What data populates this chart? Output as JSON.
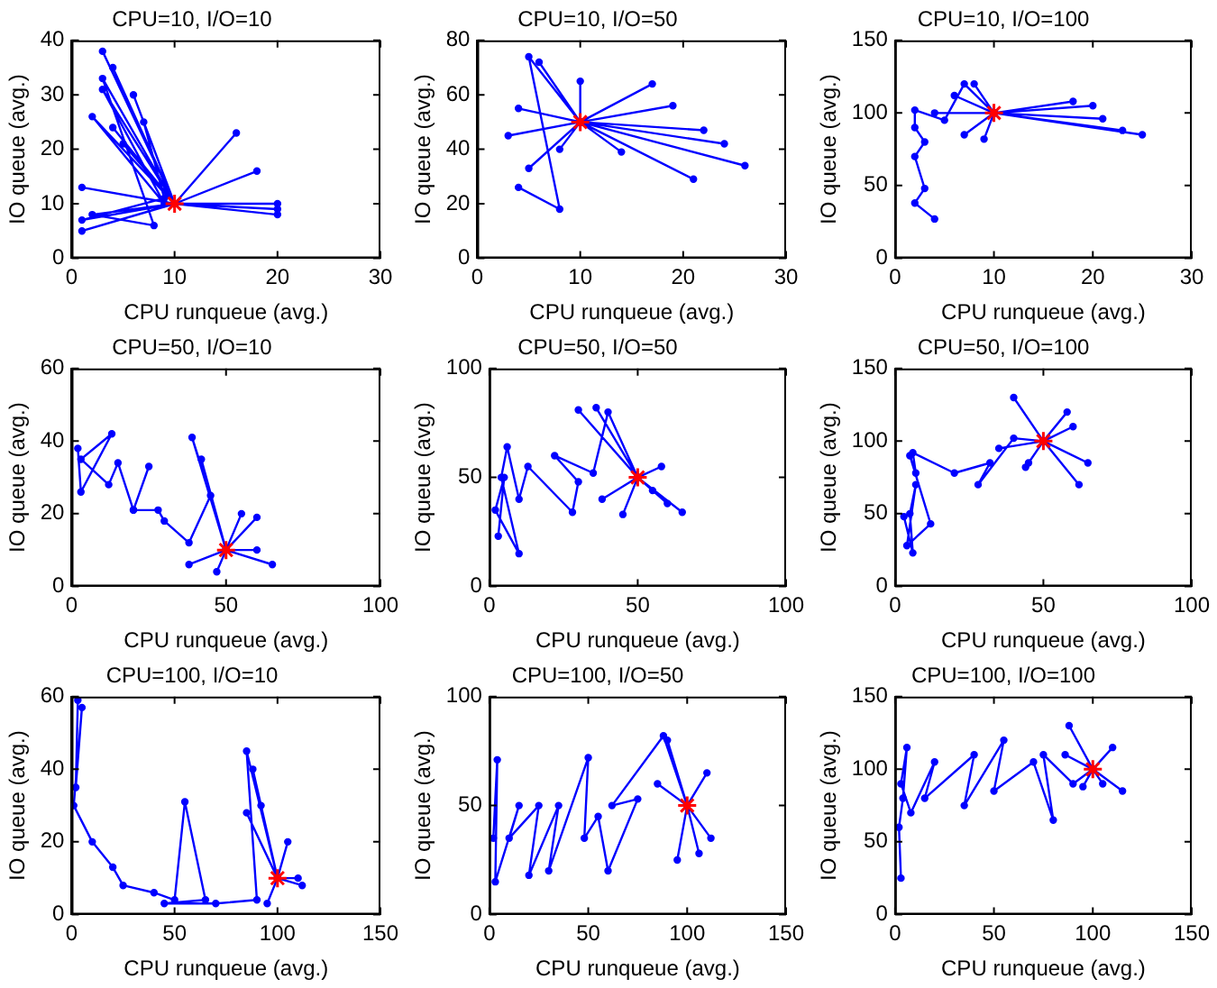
{
  "chart_data": [
    {
      "type": "line",
      "title": "CPU=10, I/O=10",
      "xlabel": "CPU runqueue (avg.)",
      "ylabel": "IO queue (avg.)",
      "xlim": [
        0,
        30
      ],
      "xticks": [
        0,
        10,
        20,
        30
      ],
      "ylim": [
        0,
        40
      ],
      "yticks": [
        0,
        10,
        20,
        30,
        40
      ],
      "grid": false,
      "legend": false,
      "series": [
        {
          "type": "line",
          "marker": "circle",
          "line_style": "solid",
          "color": "#0000ff",
          "x": [
            3,
            10,
            4,
            10,
            3,
            9,
            2,
            10,
            5,
            10,
            1,
            10,
            20,
            10,
            16,
            10,
            18,
            10,
            20,
            10,
            1,
            10,
            2,
            8,
            3,
            10,
            6,
            10,
            7,
            9,
            1,
            10,
            4,
            10,
            20,
            10
          ],
          "values": [
            38,
            10,
            35,
            10,
            31,
            10,
            26,
            10,
            21,
            10,
            5,
            10,
            9,
            10,
            23,
            10,
            16,
            10,
            8,
            10,
            13,
            10,
            8,
            6,
            33,
            10,
            30,
            10,
            25,
            11,
            7,
            10,
            24,
            10,
            10,
            10
          ]
        },
        {
          "type": "scatter",
          "marker": "cross",
          "color": "#ff0000",
          "x": [
            10
          ],
          "values": [
            10
          ]
        }
      ]
    },
    {
      "type": "line",
      "title": "CPU=10, I/O=50",
      "xlabel": "CPU runqueue (avg.)",
      "ylabel": "IO queue (avg.)",
      "xlim": [
        0,
        30
      ],
      "xticks": [
        0,
        10,
        20,
        30
      ],
      "ylim": [
        0,
        80
      ],
      "yticks": [
        0,
        20,
        40,
        60,
        80
      ],
      "grid": false,
      "legend": false,
      "series": [
        {
          "type": "line",
          "marker": "circle",
          "line_style": "solid",
          "color": "#0000ff",
          "x": [
            4,
            8,
            5,
            10,
            6,
            10,
            26,
            10,
            22,
            10,
            17,
            10,
            10,
            10,
            4,
            10,
            21,
            10,
            14,
            10,
            3,
            10,
            5,
            10,
            19,
            10,
            24,
            10,
            8,
            10
          ],
          "values": [
            26,
            18,
            74,
            50,
            72,
            50,
            34,
            50,
            47,
            50,
            64,
            50,
            65,
            50,
            55,
            50,
            29,
            50,
            39,
            50,
            45,
            50,
            33,
            50,
            56,
            50,
            42,
            50,
            40,
            50
          ]
        },
        {
          "type": "scatter",
          "marker": "cross",
          "color": "#ff0000",
          "x": [
            10
          ],
          "values": [
            50
          ]
        }
      ]
    },
    {
      "type": "line",
      "title": "CPU=10, I/O=100",
      "xlabel": "CPU runqueue (avg.)",
      "ylabel": "IO queue (avg.)",
      "xlim": [
        0,
        30
      ],
      "xticks": [
        0,
        10,
        20,
        30
      ],
      "ylim": [
        0,
        150
      ],
      "yticks": [
        0,
        50,
        100,
        150
      ],
      "grid": false,
      "legend": false,
      "series": [
        {
          "type": "line",
          "marker": "circle",
          "line_style": "solid",
          "color": "#0000ff",
          "x": [
            4,
            2,
            3,
            2,
            3,
            2,
            2,
            5,
            7,
            10,
            25,
            10,
            23,
            10,
            20,
            10,
            8,
            10,
            9,
            10,
            6,
            10,
            18,
            10,
            4,
            10,
            7,
            10,
            21,
            10
          ],
          "values": [
            27,
            38,
            48,
            70,
            80,
            90,
            102,
            95,
            120,
            100,
            85,
            100,
            88,
            100,
            105,
            100,
            120,
            100,
            82,
            100,
            112,
            100,
            108,
            100,
            100,
            100,
            85,
            100,
            96,
            100
          ]
        },
        {
          "type": "scatter",
          "marker": "cross",
          "color": "#ff0000",
          "x": [
            10
          ],
          "values": [
            100
          ]
        }
      ]
    },
    {
      "type": "line",
      "title": "CPU=50, I/O=10",
      "xlabel": "CPU runqueue (avg.)",
      "ylabel": "IO queue (avg.)",
      "xlim": [
        0,
        100
      ],
      "xticks": [
        0,
        50,
        100
      ],
      "ylim": [
        0,
        60
      ],
      "yticks": [
        0,
        20,
        40,
        60
      ],
      "grid": false,
      "legend": false,
      "series": [
        {
          "type": "line",
          "marker": "circle",
          "line_style": "solid",
          "color": "#0000ff",
          "x": [
            2,
            3,
            13,
            3,
            12,
            15,
            20,
            25,
            20,
            28,
            30,
            38,
            45,
            39,
            50,
            65,
            50,
            42,
            50,
            60,
            50,
            38,
            50,
            55,
            50,
            47,
            50,
            60,
            50
          ],
          "values": [
            38,
            26,
            42,
            35,
            28,
            34,
            21,
            33,
            21,
            21,
            18,
            12,
            25,
            41,
            10,
            6,
            10,
            35,
            10,
            19,
            10,
            6,
            10,
            20,
            10,
            4,
            10,
            10,
            10
          ]
        },
        {
          "type": "scatter",
          "marker": "cross",
          "color": "#ff0000",
          "x": [
            50
          ],
          "values": [
            10
          ]
        }
      ]
    },
    {
      "type": "line",
      "title": "CPU=50, I/O=50",
      "xlabel": "CPU runqueue (avg.)",
      "ylabel": "IO queue (avg.)",
      "xlim": [
        0,
        100
      ],
      "xticks": [
        0,
        50,
        100
      ],
      "ylim": [
        0,
        100
      ],
      "yticks": [
        0,
        50,
        100
      ],
      "grid": false,
      "legend": false,
      "series": [
        {
          "type": "line",
          "marker": "circle",
          "line_style": "solid",
          "color": "#0000ff",
          "x": [
            3,
            5,
            2,
            10,
            4,
            6,
            10,
            13,
            28,
            30,
            22,
            35,
            40,
            50,
            36,
            50,
            65,
            50,
            60,
            50,
            38,
            50,
            45,
            50,
            58,
            50,
            30,
            50,
            55,
            50
          ],
          "values": [
            23,
            50,
            35,
            15,
            50,
            64,
            40,
            55,
            34,
            48,
            60,
            52,
            80,
            50,
            82,
            50,
            34,
            50,
            38,
            50,
            40,
            50,
            33,
            50,
            55,
            50,
            81,
            50,
            44,
            50
          ]
        },
        {
          "type": "scatter",
          "marker": "cross",
          "color": "#ff0000",
          "x": [
            50
          ],
          "values": [
            50
          ]
        }
      ]
    },
    {
      "type": "line",
      "title": "CPU=50, I/O=100",
      "xlabel": "CPU runqueue (avg.)",
      "ylabel": "IO queue (avg.)",
      "xlim": [
        0,
        100
      ],
      "xticks": [
        0,
        50,
        100
      ],
      "ylim": [
        0,
        150
      ],
      "yticks": [
        0,
        50,
        100,
        150
      ],
      "grid": false,
      "legend": false,
      "series": [
        {
          "type": "line",
          "marker": "circle",
          "line_style": "solid",
          "color": "#0000ff",
          "x": [
            3,
            6,
            5,
            7,
            4,
            12,
            5,
            7,
            6,
            20,
            32,
            28,
            40,
            50,
            40,
            50,
            65,
            50,
            62,
            50,
            44,
            50,
            58,
            50,
            35,
            50,
            60,
            50,
            45,
            50
          ],
          "values": [
            48,
            23,
            50,
            70,
            28,
            43,
            90,
            78,
            92,
            78,
            85,
            70,
            102,
            100,
            130,
            100,
            85,
            100,
            70,
            100,
            82,
            100,
            120,
            100,
            95,
            100,
            110,
            100,
            85,
            100
          ]
        },
        {
          "type": "scatter",
          "marker": "cross",
          "color": "#ff0000",
          "x": [
            50
          ],
          "values": [
            100
          ]
        }
      ]
    },
    {
      "type": "line",
      "title": "CPU=100, I/O=10",
      "xlabel": "CPU runqueue (avg.)",
      "ylabel": "IO queue (avg.)",
      "xlim": [
        0,
        150
      ],
      "xticks": [
        0,
        50,
        100,
        150
      ],
      "ylim": [
        0,
        60
      ],
      "yticks": [
        0,
        20,
        40,
        60
      ],
      "grid": false,
      "legend": false,
      "series": [
        {
          "type": "line",
          "marker": "circle",
          "line_style": "solid",
          "color": "#0000ff",
          "x": [
            3,
            2,
            5,
            1,
            10,
            20,
            25,
            40,
            50,
            55,
            65,
            45,
            70,
            90,
            85,
            100,
            110,
            100,
            95,
            100,
            88,
            100,
            105,
            100,
            92,
            100,
            112,
            100,
            85,
            100
          ],
          "values": [
            59,
            35,
            57,
            30,
            20,
            13,
            8,
            6,
            4,
            31,
            4,
            3,
            3,
            4,
            45,
            10,
            10,
            10,
            3,
            10,
            40,
            10,
            20,
            10,
            30,
            10,
            8,
            10,
            28,
            10
          ]
        },
        {
          "type": "scatter",
          "marker": "cross",
          "color": "#ff0000",
          "x": [
            100
          ],
          "values": [
            10
          ]
        }
      ]
    },
    {
      "type": "line",
      "title": "CPU=100, I/O=50",
      "xlabel": "CPU runqueue (avg.)",
      "ylabel": "IO queue (avg.)",
      "xlim": [
        0,
        150
      ],
      "xticks": [
        0,
        50,
        100,
        150
      ],
      "ylim": [
        0,
        100
      ],
      "yticks": [
        0,
        50,
        100
      ],
      "grid": false,
      "legend": false,
      "series": [
        {
          "type": "line",
          "marker": "circle",
          "line_style": "solid",
          "color": "#0000ff",
          "x": [
            2,
            4,
            3,
            15,
            10,
            25,
            20,
            35,
            30,
            50,
            48,
            55,
            60,
            75,
            62,
            88,
            100,
            90,
            100,
            112,
            100,
            95,
            100,
            110,
            100,
            85,
            100,
            106,
            100
          ],
          "values": [
            35,
            71,
            15,
            50,
            35,
            50,
            18,
            50,
            20,
            72,
            35,
            45,
            20,
            53,
            50,
            82,
            50,
            80,
            50,
            35,
            50,
            25,
            50,
            65,
            50,
            60,
            50,
            28,
            50
          ]
        },
        {
          "type": "scatter",
          "marker": "cross",
          "color": "#ff0000",
          "x": [
            100
          ],
          "values": [
            50
          ]
        }
      ]
    },
    {
      "type": "line",
      "title": "CPU=100, I/O=100",
      "xlabel": "CPU runqueue (avg.)",
      "ylabel": "IO queue (avg.)",
      "xlim": [
        0,
        150
      ],
      "xticks": [
        0,
        50,
        100,
        150
      ],
      "ylim": [
        0,
        150
      ],
      "yticks": [
        0,
        50,
        100,
        150
      ],
      "grid": false,
      "legend": false,
      "series": [
        {
          "type": "line",
          "marker": "circle",
          "line_style": "solid",
          "color": "#0000ff",
          "x": [
            3,
            2,
            4,
            6,
            3,
            8,
            20,
            15,
            40,
            35,
            55,
            50,
            70,
            80,
            75,
            90,
            100,
            88,
            100,
            115,
            100,
            95,
            100,
            110,
            100,
            86,
            100,
            105,
            100
          ],
          "values": [
            25,
            60,
            80,
            115,
            90,
            70,
            105,
            80,
            110,
            75,
            120,
            85,
            105,
            65,
            110,
            90,
            100,
            130,
            100,
            85,
            100,
            88,
            100,
            115,
            100,
            110,
            100,
            90,
            100
          ]
        },
        {
          "type": "scatter",
          "marker": "cross",
          "color": "#ff0000",
          "x": [
            100
          ],
          "values": [
            100
          ]
        }
      ]
    }
  ]
}
